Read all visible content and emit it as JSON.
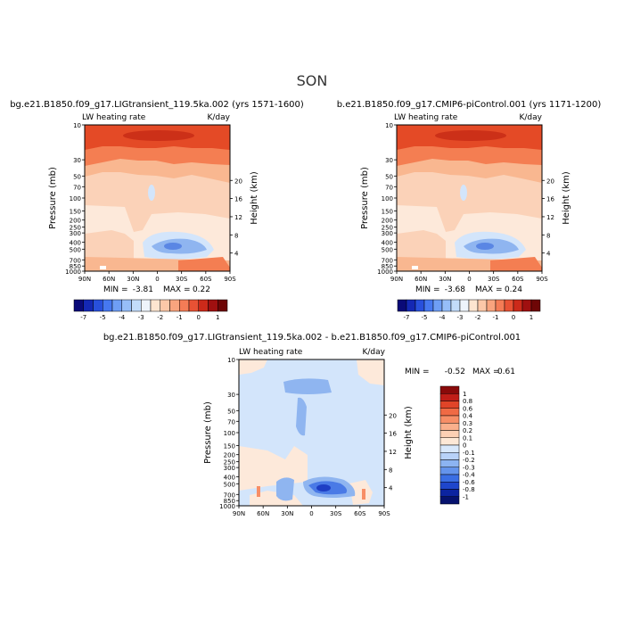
{
  "figure": {
    "season": "SON"
  },
  "chart_data": [
    {
      "type": "heatmap",
      "id": "left",
      "title": "bg.e21.B1850.f09_g17.LIGtransient_119.5ka.002 (yrs 1571-1600)",
      "variable": "LW heating rate",
      "units": "K/day",
      "ylabel": "Pressure (mb)",
      "ylabel_right": "Height (km)",
      "x_ticks": [
        "90N",
        "60N",
        "30N",
        "0",
        "30S",
        "60S",
        "90S"
      ],
      "y_ticks": [
        "10",
        "30",
        "50",
        "70",
        "100",
        "150",
        "200",
        "250",
        "300",
        "400",
        "500",
        "700",
        "850",
        "1000"
      ],
      "height_ticks": [
        "4",
        "8",
        "12",
        "16",
        "20"
      ],
      "min_label": "MIN =",
      "min_value": "-3.81",
      "max_label": "MAX =",
      "max_value": "0.22",
      "ylim": [
        1000,
        10
      ]
    },
    {
      "type": "heatmap",
      "id": "right",
      "title": "b.e21.B1850.f09_g17.CMIP6-piControl.001 (yrs 1171-1200)",
      "variable": "LW heating rate",
      "units": "K/day",
      "ylabel": "Pressure (mb)",
      "ylabel_right": "Height (km)",
      "x_ticks": [
        "90N",
        "60N",
        "30N",
        "0",
        "30S",
        "60S",
        "90S"
      ],
      "y_ticks": [
        "10",
        "30",
        "50",
        "70",
        "100",
        "150",
        "200",
        "250",
        "300",
        "400",
        "500",
        "700",
        "850",
        "1000"
      ],
      "height_ticks": [
        "4",
        "8",
        "12",
        "16",
        "20"
      ],
      "min_label": "MIN =",
      "min_value": "-3.68",
      "max_label": "MAX =",
      "max_value": "0.24",
      "ylim": [
        1000,
        10
      ]
    },
    {
      "type": "heatmap",
      "id": "diff",
      "title": "bg.e21.B1850.f09_g17.LIGtransient_119.5ka.002 - b.e21.B1850.f09_g17.CMIP6-piControl.001",
      "variable": "LW heating rate",
      "units": "K/day",
      "ylabel": "Pressure (mb)",
      "ylabel_right": "Height (km)",
      "x_ticks": [
        "90N",
        "60N",
        "30N",
        "0",
        "30S",
        "60S",
        "90S"
      ],
      "y_ticks": [
        "10",
        "30",
        "50",
        "70",
        "100",
        "150",
        "200",
        "250",
        "300",
        "400",
        "500",
        "700",
        "850",
        "1000"
      ],
      "height_ticks": [
        "4",
        "8",
        "12",
        "16",
        "20"
      ],
      "min_label": "MIN =",
      "min_value": "-0.52",
      "max_label": "MAX =",
      "max_value": "0.61",
      "ylim": [
        1000,
        10
      ]
    }
  ],
  "colorbars": {
    "horizontal": {
      "labels": [
        "-7",
        "-5",
        "-4",
        "-3",
        "-2",
        "-1",
        "0",
        "1"
      ],
      "colors": [
        "#0a0a78",
        "#1428b4",
        "#2850dc",
        "#4678f0",
        "#6e9ef5",
        "#96bef8",
        "#c2dcfa",
        "#eef4fb",
        "#fde5d0",
        "#fcc8a8",
        "#f9a47e",
        "#f47c56",
        "#e85234",
        "#cc2a1a",
        "#a01010",
        "#6e0606"
      ]
    },
    "vertical": {
      "labels": [
        "1",
        "0.8",
        "0.6",
        "0.4",
        "0.3",
        "0.2",
        "0.1",
        "0",
        "-0.1",
        "-0.2",
        "-0.3",
        "-0.4",
        "-0.6",
        "-0.8",
        "-1"
      ],
      "colors": [
        "#8a0a0a",
        "#c01e18",
        "#e04428",
        "#f06a44",
        "#f78e66",
        "#fab08c",
        "#fcd0b4",
        "#fde8d6",
        "#d8e8fb",
        "#b8d2f8",
        "#8cb4f2",
        "#6494ec",
        "#3a6ee4",
        "#1e46cc",
        "#0c24a0",
        "#06126e"
      ]
    }
  },
  "colors": {
    "deep_red": "#e44a26",
    "mid_red": "#f47e52",
    "light_orange": "#f9b790",
    "peach": "#fbd2b8",
    "cream": "#fde9da",
    "pale_blue": "#d3e5fb",
    "mid_blue": "#8fb5f0",
    "dark_blue": "#2f62dc"
  }
}
